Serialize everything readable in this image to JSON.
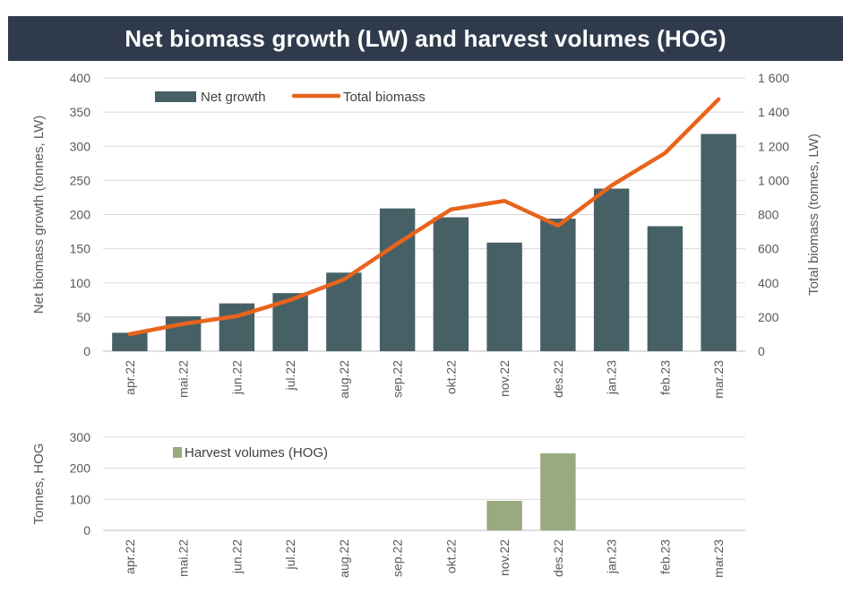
{
  "title": "Net biomass growth (LW) and harvest volumes (HOG)",
  "colors": {
    "title_bg": "#2f3b4d",
    "bar": "#476066",
    "line": "#e8641c",
    "harvest": "#9aaa80",
    "grid": "#d9d9d9",
    "text": "#595959"
  },
  "chart_data": [
    {
      "type": "bar",
      "title": "Net biomass growth (LW) and harvest volumes (HOG)",
      "categories": [
        "apr.22",
        "mai.22",
        "jun.22",
        "jul.22",
        "aug.22",
        "sep.22",
        "okt.22",
        "nov.22",
        "des.22",
        "jan.23",
        "feb.23",
        "mar.23"
      ],
      "ylabel": "Net biomass growth (tonnes, LW)",
      "y2label": "Total biomass (tonnes, LW)",
      "ylim": [
        0,
        400
      ],
      "y2lim": [
        0,
        1600
      ],
      "yticks": [
        "0",
        "50",
        "100",
        "150",
        "200",
        "250",
        "300",
        "350",
        "400"
      ],
      "y2ticks": [
        "0",
        "200",
        "400",
        "600",
        "800",
        "1 000",
        "1 200",
        "1 400",
        "1 600"
      ],
      "grid": true,
      "legend_position": "top-left",
      "series": [
        {
          "name": "Net growth",
          "type": "bar",
          "axis": "left",
          "values": [
            27,
            51,
            70,
            85,
            115,
            209,
            196,
            159,
            194,
            238,
            183,
            318
          ]
        },
        {
          "name": "Total biomass",
          "type": "line",
          "axis": "right",
          "values": [
            100,
            160,
            205,
            300,
            420,
            630,
            830,
            880,
            735,
            970,
            1160,
            1475
          ]
        }
      ]
    },
    {
      "type": "bar",
      "categories": [
        "apr.22",
        "mai.22",
        "jun.22",
        "jul.22",
        "aug.22",
        "sep.22",
        "okt.22",
        "nov.22",
        "des.22",
        "jan.23",
        "feb.23",
        "mar.23"
      ],
      "ylabel": "Tonnes, HOG",
      "ylim": [
        0,
        300
      ],
      "yticks": [
        "0",
        "100",
        "200",
        "300"
      ],
      "grid": true,
      "legend_position": "top-left",
      "series": [
        {
          "name": "Harvest volumes (HOG)",
          "type": "bar",
          "values": [
            0,
            0,
            0,
            0,
            0,
            0,
            0,
            95,
            248,
            0,
            0,
            0
          ]
        }
      ]
    }
  ]
}
